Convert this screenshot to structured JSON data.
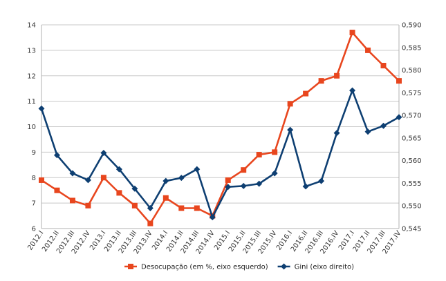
{
  "chart_data": {
    "type": "line",
    "categories": [
      "2012.I",
      "2012.II",
      "2012.III",
      "2012.IV",
      "2013.I",
      "2013.II",
      "2013.III",
      "2013.IV",
      "2014.I",
      "2014.II",
      "2014.III",
      "2014.IV",
      "2015.I",
      "2015.II",
      "2015.III",
      "2015.IV",
      "2016.I",
      "2016.II",
      "2016.III",
      "2016.IV",
      "2017.I",
      "2017.II",
      "2017.III",
      "2017.IV"
    ],
    "series": [
      {
        "name": "Desocupação (em %, eixo esquerdo)",
        "axis": "left",
        "color": "#E8461E",
        "marker": "square",
        "values": [
          7.9,
          7.5,
          7.1,
          6.9,
          8.0,
          7.4,
          6.9,
          6.2,
          7.2,
          6.8,
          6.8,
          6.5,
          7.9,
          8.3,
          8.9,
          9.0,
          10.9,
          11.3,
          11.8,
          12.0,
          13.7,
          13.0,
          12.4,
          11.8
        ]
      },
      {
        "name": "Gini (eixo direito)",
        "axis": "right",
        "color": "#0E3F72",
        "marker": "diamond",
        "values": [
          0.5715,
          0.5612,
          0.5572,
          0.5557,
          0.5617,
          0.5581,
          0.5538,
          0.5495,
          0.5555,
          0.5562,
          0.5581,
          0.5475,
          0.5542,
          0.5544,
          0.5549,
          0.5572,
          0.5668,
          0.5543,
          0.5555,
          0.5661,
          0.5755,
          0.5664,
          0.5677,
          0.5696
        ]
      }
    ],
    "yleft": {
      "min": 6,
      "max": 14,
      "ticks": [
        "6",
        "7",
        "8",
        "9",
        "10",
        "11",
        "12",
        "13",
        "14"
      ]
    },
    "yright": {
      "min": 0.545,
      "max": 0.59,
      "ticks": [
        "0,545",
        "0,550",
        "0,555",
        "0,560",
        "0,565",
        "0,570",
        "0,575",
        "0,580",
        "0,585",
        "0,590"
      ]
    },
    "grid": "horizontal",
    "legend": "bottom"
  }
}
